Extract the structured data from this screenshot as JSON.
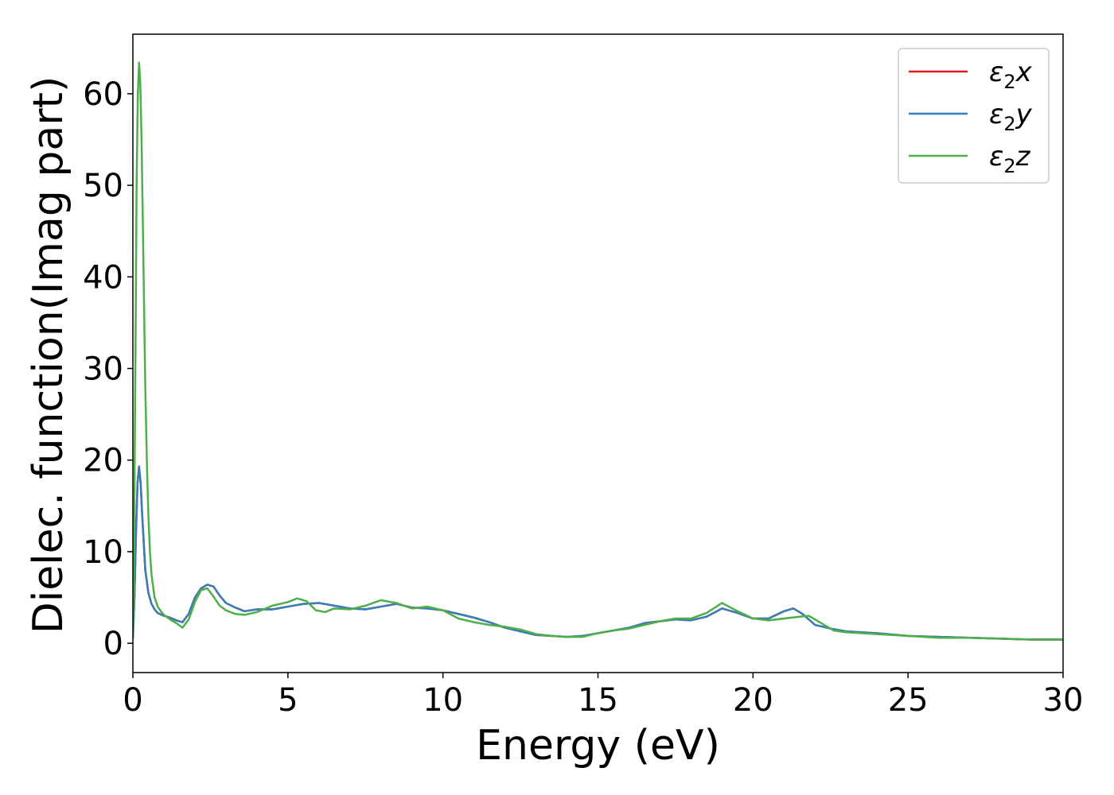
{
  "chart_data": {
    "type": "line",
    "title": "",
    "xlabel": "Energy (eV)",
    "ylabel": "Dielec. function(Imag part)",
    "xlim": [
      0,
      30
    ],
    "ylim": [
      -3.2,
      66.5
    ],
    "xticks": [
      0,
      5,
      10,
      15,
      20,
      25,
      30
    ],
    "yticks": [
      0,
      10,
      20,
      30,
      40,
      50,
      60
    ],
    "grid": false,
    "legend_position": "top-right",
    "series": [
      {
        "name": "ε2x",
        "legend_base": "ε",
        "legend_sub": "2",
        "legend_var": "x",
        "color": "#e41a1c",
        "x": [
          0,
          0.05,
          0.1,
          0.15,
          0.2,
          0.25,
          0.3,
          0.35,
          0.4,
          0.5,
          0.6,
          0.7,
          0.8,
          1.0,
          1.2,
          1.4,
          1.6,
          1.8,
          2.0,
          2.2,
          2.4,
          2.6,
          2.8,
          3.0,
          3.3,
          3.6,
          4.0,
          4.5,
          5.0,
          5.5,
          6.0,
          6.5,
          7.0,
          7.5,
          8.0,
          8.5,
          9.0,
          9.5,
          10.0,
          10.5,
          11.0,
          11.5,
          12.0,
          12.5,
          13.0,
          13.5,
          14.0,
          14.5,
          15.0,
          15.5,
          16.0,
          16.5,
          17.0,
          17.5,
          18.0,
          18.5,
          19.0,
          19.5,
          20.0,
          20.5,
          21.0,
          21.3,
          21.6,
          22.0,
          22.5,
          23.0,
          24.0,
          25.0,
          26.0,
          27.0,
          28.0,
          29.0,
          30.0
        ],
        "y": [
          0.5,
          5,
          12,
          17.5,
          19.3,
          17.5,
          14,
          11,
          8,
          5.5,
          4.3,
          3.7,
          3.3,
          3.0,
          2.8,
          2.5,
          2.3,
          3.2,
          5.0,
          6.0,
          6.4,
          6.2,
          5.2,
          4.4,
          3.9,
          3.5,
          3.7,
          3.7,
          4.0,
          4.3,
          4.4,
          4.1,
          3.8,
          3.7,
          4.0,
          4.3,
          3.9,
          3.8,
          3.6,
          3.2,
          2.8,
          2.3,
          1.7,
          1.3,
          0.9,
          0.8,
          0.7,
          0.8,
          1.1,
          1.4,
          1.7,
          2.2,
          2.4,
          2.6,
          2.5,
          2.9,
          3.8,
          3.3,
          2.7,
          2.7,
          3.5,
          3.8,
          3.2,
          2.0,
          1.6,
          1.3,
          1.1,
          0.8,
          0.7,
          0.6,
          0.5,
          0.4,
          0.4
        ]
      },
      {
        "name": "ε2y",
        "legend_base": "ε",
        "legend_sub": "2",
        "legend_var": "y",
        "color": "#377eb8",
        "x": [
          0,
          0.05,
          0.1,
          0.15,
          0.2,
          0.25,
          0.3,
          0.35,
          0.4,
          0.5,
          0.6,
          0.7,
          0.8,
          1.0,
          1.2,
          1.4,
          1.6,
          1.8,
          2.0,
          2.2,
          2.4,
          2.6,
          2.8,
          3.0,
          3.3,
          3.6,
          4.0,
          4.5,
          5.0,
          5.5,
          6.0,
          6.5,
          7.0,
          7.5,
          8.0,
          8.5,
          9.0,
          9.5,
          10.0,
          10.5,
          11.0,
          11.5,
          12.0,
          12.5,
          13.0,
          13.5,
          14.0,
          14.5,
          15.0,
          15.5,
          16.0,
          16.5,
          17.0,
          17.5,
          18.0,
          18.5,
          19.0,
          19.5,
          20.0,
          20.5,
          21.0,
          21.3,
          21.6,
          22.0,
          22.5,
          23.0,
          24.0,
          25.0,
          26.0,
          27.0,
          28.0,
          29.0,
          30.0
        ],
        "y": [
          0.5,
          5,
          12,
          17.5,
          19.3,
          17.5,
          14,
          11,
          8,
          5.5,
          4.3,
          3.7,
          3.3,
          3.0,
          2.8,
          2.5,
          2.3,
          3.2,
          5.0,
          6.0,
          6.4,
          6.2,
          5.2,
          4.4,
          3.9,
          3.5,
          3.7,
          3.7,
          4.0,
          4.3,
          4.4,
          4.1,
          3.8,
          3.7,
          4.0,
          4.3,
          3.9,
          3.8,
          3.6,
          3.2,
          2.8,
          2.3,
          1.7,
          1.3,
          0.9,
          0.8,
          0.7,
          0.8,
          1.1,
          1.4,
          1.7,
          2.2,
          2.4,
          2.6,
          2.5,
          2.9,
          3.8,
          3.3,
          2.7,
          2.7,
          3.5,
          3.8,
          3.2,
          2.0,
          1.6,
          1.3,
          1.1,
          0.8,
          0.7,
          0.6,
          0.5,
          0.4,
          0.4
        ]
      },
      {
        "name": "ε2z",
        "legend_base": "ε",
        "legend_sub": "2",
        "legend_var": "z",
        "color": "#4daf4a",
        "x": [
          0,
          0.04,
          0.08,
          0.12,
          0.16,
          0.2,
          0.24,
          0.28,
          0.32,
          0.36,
          0.4,
          0.45,
          0.5,
          0.55,
          0.6,
          0.7,
          0.8,
          0.9,
          1.0,
          1.2,
          1.4,
          1.6,
          1.8,
          2.0,
          2.2,
          2.4,
          2.6,
          2.8,
          3.0,
          3.3,
          3.6,
          4.0,
          4.5,
          5.0,
          5.3,
          5.6,
          5.9,
          6.2,
          6.5,
          7.0,
          7.5,
          8.0,
          8.5,
          9.0,
          9.5,
          10.0,
          10.5,
          11.0,
          11.5,
          12.0,
          12.5,
          13.0,
          13.5,
          14.0,
          14.5,
          15.0,
          15.5,
          16.0,
          16.5,
          17.0,
          17.5,
          18.0,
          18.5,
          19.0,
          19.5,
          20.0,
          20.5,
          21.0,
          21.5,
          21.8,
          22.2,
          22.6,
          23.0,
          24.0,
          25.0,
          26.0,
          27.0,
          28.0,
          29.0,
          30.0
        ],
        "y": [
          0.5,
          12,
          30,
          50,
          60,
          63.4,
          61,
          55,
          46,
          37,
          28,
          20,
          14,
          10,
          7.5,
          5.0,
          4.0,
          3.5,
          3.1,
          2.6,
          2.2,
          1.7,
          2.6,
          4.5,
          5.8,
          6.0,
          5.1,
          4.1,
          3.6,
          3.2,
          3.1,
          3.4,
          4.1,
          4.5,
          4.9,
          4.6,
          3.6,
          3.4,
          3.8,
          3.7,
          4.1,
          4.7,
          4.4,
          3.8,
          4.0,
          3.6,
          2.7,
          2.3,
          2.0,
          1.8,
          1.5,
          1.0,
          0.8,
          0.7,
          0.7,
          1.1,
          1.4,
          1.6,
          2.0,
          2.4,
          2.7,
          2.7,
          3.3,
          4.4,
          3.5,
          2.7,
          2.5,
          2.7,
          2.9,
          3.0,
          2.2,
          1.4,
          1.2,
          1.0,
          0.8,
          0.6,
          0.6,
          0.5,
          0.4,
          0.4
        ]
      }
    ]
  }
}
